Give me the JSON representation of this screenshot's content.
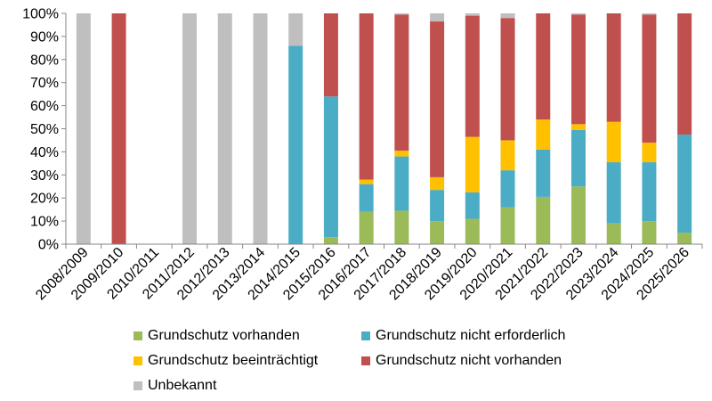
{
  "chart_data": {
    "type": "bar",
    "stacked": true,
    "categories": [
      "2008/2009",
      "2009/2010",
      "2010/2011",
      "2011/2012",
      "2012/2013",
      "2013/2014",
      "2014/2015",
      "2015/2016",
      "2016/2017",
      "2017/2018",
      "2018/2019",
      "2019/2020",
      "2020/2021",
      "2021/2022",
      "2022/2023",
      "2023/2024",
      "2024/2025",
      "2025/2026"
    ],
    "series": [
      {
        "name": "Grundschutz vorhanden",
        "color": "#9BBB59",
        "values": [
          0,
          0,
          0,
          0,
          0,
          0,
          0,
          3,
          14,
          14.5,
          10,
          11,
          16,
          20.5,
          25,
          9,
          10,
          5
        ]
      },
      {
        "name": "Grundschutz nicht erforderlich",
        "color": "#4BACC6",
        "values": [
          0,
          0,
          0,
          0,
          0,
          0,
          86,
          61,
          12,
          23.5,
          13.5,
          11.5,
          16,
          20.5,
          24.5,
          26.5,
          25.5,
          42.5
        ]
      },
      {
        "name": "Grundschutz beeinträchtigt",
        "color": "#FFC000",
        "values": [
          0,
          0,
          0,
          0,
          0,
          0,
          0,
          0,
          2,
          2.5,
          5.5,
          24,
          13,
          13,
          2.5,
          17.5,
          8.5,
          0
        ]
      },
      {
        "name": "Grundschutz nicht vorhanden",
        "color": "#C0504D",
        "values": [
          0,
          100,
          0,
          0,
          0,
          0,
          0,
          36,
          72,
          59,
          67.5,
          52.5,
          53,
          46,
          47.5,
          47,
          55.5,
          52.5
        ]
      },
      {
        "name": "Unbekannt",
        "color": "#BFBFBF",
        "values": [
          100,
          0,
          0,
          100,
          100,
          100,
          14,
          0,
          0,
          0.5,
          3.5,
          1,
          2,
          0,
          0.5,
          0,
          0.5,
          0
        ]
      }
    ],
    "ylim": [
      0,
      100
    ],
    "yticks": [
      "0%",
      "10%",
      "20%",
      "30%",
      "40%",
      "50%",
      "60%",
      "70%",
      "80%",
      "90%",
      "100%"
    ],
    "grid": false,
    "legend_position": "bottom"
  }
}
